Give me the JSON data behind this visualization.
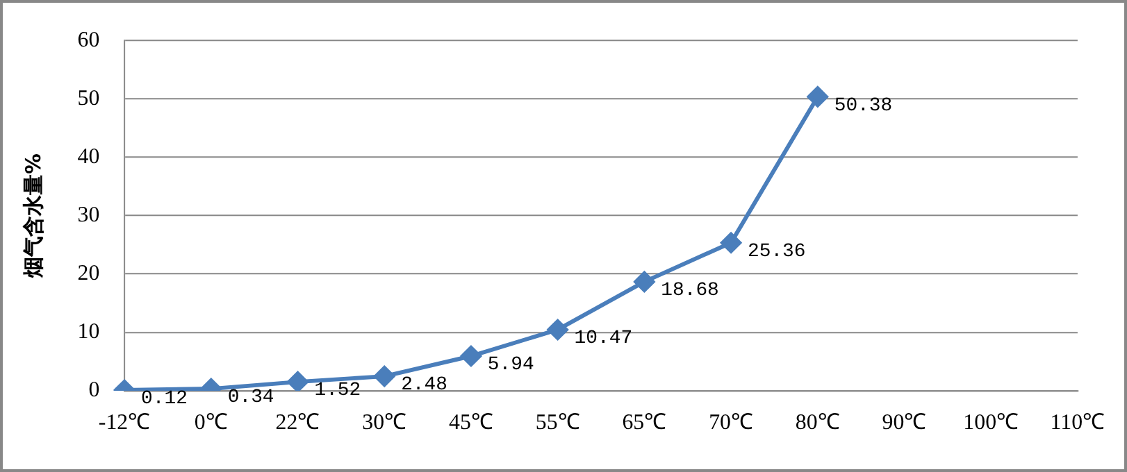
{
  "chart_data": {
    "type": "line",
    "ylabel": "烟气含水量%",
    "categories": [
      "-12℃",
      "0℃",
      "22℃",
      "30℃",
      "45℃",
      "55℃",
      "65℃",
      "70℃",
      "80℃",
      "90℃",
      "100℃",
      "110℃"
    ],
    "series": [
      {
        "color": "#4a7ebb",
        "values": [
          0.12,
          0.34,
          1.52,
          2.48,
          5.94,
          10.47,
          18.68,
          25.36,
          50.38,
          null,
          null,
          null
        ]
      }
    ],
    "ylim": [
      0,
      60
    ],
    "yticks": [
      0,
      10,
      20,
      30,
      40,
      50,
      60
    ],
    "grid": "y",
    "legend": false,
    "marker": "diamond",
    "line_style": "solid",
    "data_labels": true
  }
}
